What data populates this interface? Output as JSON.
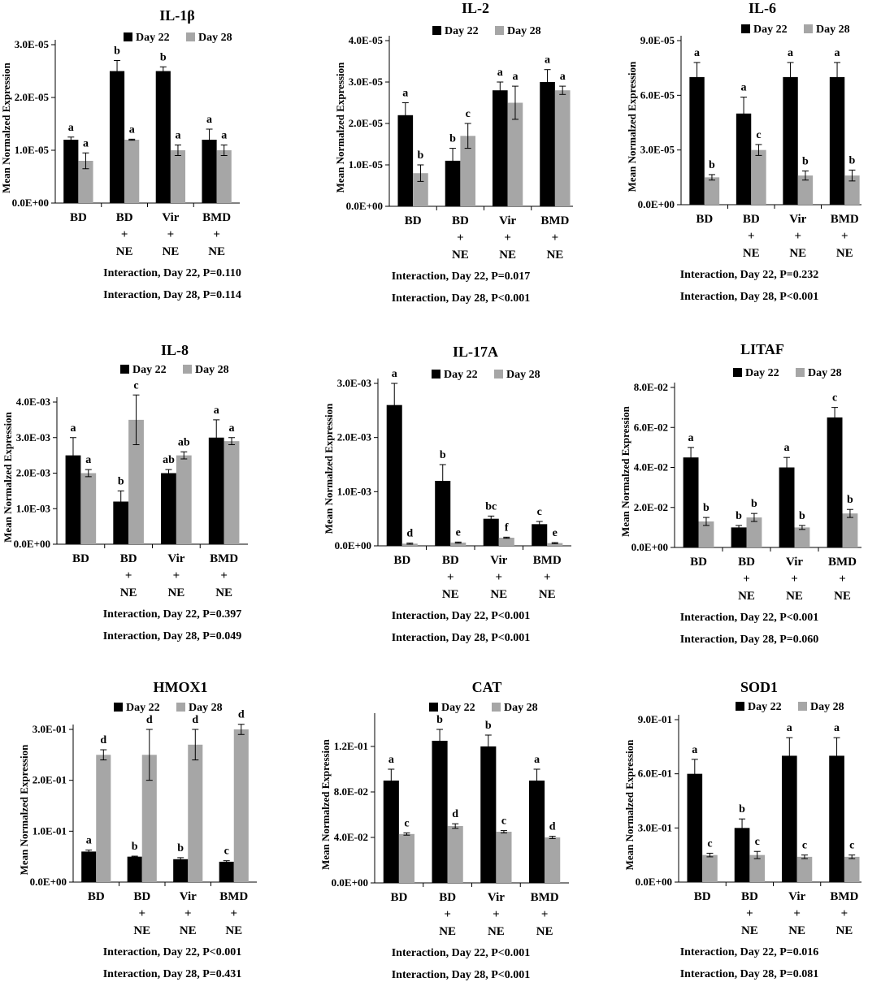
{
  "figure": {
    "legend_labels": [
      "Day 22",
      "Day 28"
    ],
    "colors": {
      "day22": "#000000",
      "day28": "#a6a6a6",
      "axis": "#000000"
    },
    "ylabel": "Mean Normalzed Expression"
  },
  "chart_data": [
    {
      "type": "bar",
      "title": "IL-1β",
      "ylabel": "Mean Normalzed Expression",
      "ylim": [
        0,
        3e-05
      ],
      "yticks": [
        0,
        1e-05,
        2e-05,
        3e-05
      ],
      "ytick_labels": [
        "0.0E+00",
        "1.0E-05",
        "2.0E-05",
        "3.0E-05"
      ],
      "categories": [
        [
          "BD"
        ],
        [
          "BD",
          "+",
          "NE"
        ],
        [
          "Vir",
          "+",
          "NE"
        ],
        [
          "BMD",
          "+",
          "NE"
        ]
      ],
      "series": [
        {
          "name": "Day 22",
          "values": [
            1.2e-05,
            2.5e-05,
            2.5e-05,
            1.2e-05
          ],
          "errors": [
            5e-07,
            2e-06,
            8e-07,
            2e-06
          ],
          "letters": [
            "a",
            "b",
            "b",
            "a"
          ]
        },
        {
          "name": "Day 28",
          "values": [
            8e-06,
            1.2e-05,
            1e-05,
            1e-05
          ],
          "errors": [
            1.5e-06,
            1e-07,
            1e-06,
            1e-06
          ],
          "letters": [
            "a",
            "a",
            "a",
            "a"
          ]
        }
      ],
      "annotations": [
        "Interaction, Day 22, P=0.110",
        "Interaction, Day 28, P=0.114"
      ]
    },
    {
      "type": "bar",
      "title": "IL-2",
      "ylabel": "Mean Normalzed Expression",
      "ylim": [
        0,
        4e-05
      ],
      "yticks": [
        0,
        1e-05,
        2e-05,
        3e-05,
        4e-05
      ],
      "ytick_labels": [
        "0.0E+00",
        "1.0E-05",
        "2.0E-05",
        "3.0E-05",
        "4.0E-05"
      ],
      "categories": [
        [
          "BD"
        ],
        [
          "BD",
          "+",
          "NE"
        ],
        [
          "Vir",
          "+",
          "NE"
        ],
        [
          "BMD",
          "+",
          "NE"
        ]
      ],
      "series": [
        {
          "name": "Day 22",
          "values": [
            2.2e-05,
            1.1e-05,
            2.8e-05,
            3e-05
          ],
          "errors": [
            3e-06,
            3e-06,
            2e-06,
            3e-06
          ],
          "letters": [
            "a",
            "b",
            "a",
            "a"
          ]
        },
        {
          "name": "Day 28",
          "values": [
            8e-06,
            1.7e-05,
            2.5e-05,
            2.8e-05
          ],
          "errors": [
            2e-06,
            3e-06,
            4e-06,
            1e-06
          ],
          "letters": [
            "b",
            "c",
            "a",
            "a"
          ]
        }
      ],
      "annotations": [
        "Interaction, Day 22, P=0.017",
        "Interaction, Day 28, P<0.001"
      ]
    },
    {
      "type": "bar",
      "title": "IL-6",
      "ylabel": "Mean Normalzed Expression",
      "ylim": [
        0,
        9e-05
      ],
      "yticks": [
        0,
        3e-05,
        6e-05,
        9e-05
      ],
      "ytick_labels": [
        "0.0E+00",
        "3.0E-05",
        "6.0E-05",
        "9.0E-05"
      ],
      "categories": [
        [
          "BD"
        ],
        [
          "BD",
          "+",
          "NE"
        ],
        [
          "Vir",
          "+",
          "NE"
        ],
        [
          "BMD",
          "+",
          "NE"
        ]
      ],
      "series": [
        {
          "name": "Day 22",
          "values": [
            7e-05,
            5e-05,
            7e-05,
            7e-05
          ],
          "errors": [
            8e-06,
            9e-06,
            8e-06,
            8e-06
          ],
          "letters": [
            "a",
            "a",
            "a",
            "a"
          ]
        },
        {
          "name": "Day 28",
          "values": [
            1.5e-05,
            3e-05,
            1.6e-05,
            1.6e-05
          ],
          "errors": [
            1.5e-06,
            3e-06,
            2.5e-06,
            3e-06
          ],
          "letters": [
            "b",
            "c",
            "b",
            "b"
          ]
        }
      ],
      "annotations": [
        "Interaction, Day 22, P=0.232",
        "Interaction, Day 28, P<0.001"
      ]
    },
    {
      "type": "bar",
      "title": "IL-8",
      "ylabel": "Mean Normalzed Expression",
      "ylim": [
        0,
        0.004
      ],
      "yticks": [
        0,
        0.001,
        0.002,
        0.003,
        0.004
      ],
      "ytick_labels": [
        "0.0E+00",
        "1.0E-03",
        "2.0E-03",
        "3.0E-03",
        "4.0E-03"
      ],
      "categories": [
        [
          "BD"
        ],
        [
          "BD",
          "+",
          "NE"
        ],
        [
          "Vir",
          "+",
          "NE"
        ],
        [
          "BMD",
          "+",
          "NE"
        ]
      ],
      "series": [
        {
          "name": "Day 22",
          "values": [
            0.0025,
            0.0012,
            0.002,
            0.003
          ],
          "errors": [
            0.0005,
            0.0003,
            0.0001,
            0.0005
          ],
          "letters": [
            "a",
            "b",
            "ab",
            "a"
          ]
        },
        {
          "name": "Day 28",
          "values": [
            0.002,
            0.0035,
            0.0025,
            0.0029
          ],
          "errors": [
            0.0001,
            0.0007,
            0.0001,
            0.0001
          ],
          "letters": [
            "a",
            "c",
            "ab",
            "a"
          ]
        }
      ],
      "annotations": [
        "Interaction, Day 22, P=0.397",
        "Interaction, Day 28, P=0.049"
      ]
    },
    {
      "type": "bar",
      "title": "IL-17A",
      "ylabel": "Mean Normalzed Expression",
      "ylim": [
        0,
        0.003
      ],
      "yticks": [
        0,
        0.001,
        0.002,
        0.003
      ],
      "ytick_labels": [
        "0.0E+00",
        "1.0E-03",
        "2.0E-03",
        "3.0E-03"
      ],
      "categories": [
        [
          "BD"
        ],
        [
          "BD",
          "+",
          "NE"
        ],
        [
          "Vir",
          "+",
          "NE"
        ],
        [
          "BMD",
          "+",
          "NE"
        ]
      ],
      "series": [
        {
          "name": "Day 22",
          "values": [
            0.0026,
            0.0012,
            0.0005,
            0.0004
          ],
          "errors": [
            0.0004,
            0.0003,
            5e-05,
            5e-05
          ],
          "letters": [
            "a",
            "b",
            "bc",
            "c"
          ]
        },
        {
          "name": "Day 28",
          "values": [
            4e-05,
            6e-05,
            0.00015,
            5e-05
          ],
          "errors": [
            1e-05,
            1e-05,
            1e-05,
            1e-05
          ],
          "letters": [
            "d",
            "e",
            "f",
            "e"
          ]
        }
      ],
      "annotations": [
        "Interaction, Day 22, P<0.001",
        "Interaction, Day 28, P<0.001"
      ]
    },
    {
      "type": "bar",
      "title": "LITAF",
      "ylabel": "Mean Normalzed Expression",
      "ylim": [
        0,
        0.08
      ],
      "yticks": [
        0,
        0.02,
        0.04,
        0.06,
        0.08
      ],
      "ytick_labels": [
        "0.0E+00",
        "2.0E-02",
        "4.0E-02",
        "6.0E-02",
        "8.0E-02"
      ],
      "categories": [
        [
          "BD"
        ],
        [
          "BD",
          "+",
          "NE"
        ],
        [
          "Vir",
          "+",
          "NE"
        ],
        [
          "BMD",
          "+",
          "NE"
        ]
      ],
      "series": [
        {
          "name": "Day 22",
          "values": [
            0.045,
            0.01,
            0.04,
            0.065
          ],
          "errors": [
            0.005,
            0.001,
            0.005,
            0.005
          ],
          "letters": [
            "a",
            "b",
            "a",
            "c"
          ]
        },
        {
          "name": "Day 28",
          "values": [
            0.013,
            0.015,
            0.01,
            0.017
          ],
          "errors": [
            0.002,
            0.002,
            0.001,
            0.002
          ],
          "letters": [
            "b",
            "b",
            "b",
            "b"
          ]
        }
      ],
      "annotations": [
        "Interaction, Day 22, P<0.001",
        "Interaction, Day 28, P=0.060"
      ]
    },
    {
      "type": "bar",
      "title": "HMOX1",
      "ylabel": "Mean Normalzed Expression",
      "ylim": [
        0,
        0.3
      ],
      "yticks": [
        0,
        0.1,
        0.2,
        0.3
      ],
      "ytick_labels": [
        "0.0E+00",
        "1.0E-01",
        "2.0E-01",
        "3.0E-01"
      ],
      "categories": [
        [
          "BD"
        ],
        [
          "BD",
          "+",
          "NE"
        ],
        [
          "Vir",
          "+",
          "NE"
        ],
        [
          "BMD",
          "+",
          "NE"
        ]
      ],
      "series": [
        {
          "name": "Day 22",
          "values": [
            0.06,
            0.05,
            0.045,
            0.04
          ],
          "errors": [
            0.003,
            0.001,
            0.003,
            0.002
          ],
          "letters": [
            "a",
            "b",
            "b",
            "c"
          ]
        },
        {
          "name": "Day 28",
          "values": [
            0.25,
            0.25,
            0.27,
            0.3
          ],
          "errors": [
            0.01,
            0.05,
            0.03,
            0.01
          ],
          "letters": [
            "d",
            "d",
            "d",
            "d"
          ]
        }
      ],
      "annotations": [
        "Interaction, Day 22, P<0.001",
        "Interaction, Day 28, P=0.431"
      ]
    },
    {
      "type": "bar",
      "title": "CAT",
      "ylabel": "Mean Normalzed Expression",
      "ylim": [
        0,
        0.145
      ],
      "yticks": [
        0,
        0.04,
        0.08,
        0.12
      ],
      "ytick_labels": [
        "0.0E+00",
        "4.0E-02",
        "8.0E-02",
        "1.2E-01"
      ],
      "categories": [
        [
          "BD"
        ],
        [
          "BD",
          "+",
          "NE"
        ],
        [
          "Vir",
          "+",
          "NE"
        ],
        [
          "BMD",
          "+",
          "NE"
        ]
      ],
      "series": [
        {
          "name": "Day 22",
          "values": [
            0.09,
            0.125,
            0.12,
            0.09
          ],
          "errors": [
            0.01,
            0.01,
            0.01,
            0.01
          ],
          "letters": [
            "a",
            "b",
            "b",
            "a"
          ]
        },
        {
          "name": "Day 28",
          "values": [
            0.043,
            0.05,
            0.045,
            0.04
          ],
          "errors": [
            0.001,
            0.002,
            0.001,
            0.001
          ],
          "letters": [
            "c",
            "d",
            "c",
            "d"
          ]
        }
      ],
      "annotations": [
        "Interaction, Day 22, P<0.001",
        "Interaction, Day 28, P<0.001"
      ]
    },
    {
      "type": "bar",
      "title": "SOD1",
      "ylabel": "Mean Normalzed Expression",
      "ylim": [
        0,
        0.9
      ],
      "yticks": [
        0,
        0.3,
        0.6,
        0.9
      ],
      "ytick_labels": [
        "0.0E+00",
        "3.0E-01",
        "6.0E-01",
        "9.0E-01"
      ],
      "categories": [
        [
          "BD"
        ],
        [
          "BD",
          "+",
          "NE"
        ],
        [
          "Vir",
          "+",
          "NE"
        ],
        [
          "BMD",
          "+",
          "NE"
        ]
      ],
      "series": [
        {
          "name": "Day 22",
          "values": [
            0.6,
            0.3,
            0.7,
            0.7
          ],
          "errors": [
            0.08,
            0.05,
            0.1,
            0.1
          ],
          "letters": [
            "a",
            "b",
            "a",
            "a"
          ]
        },
        {
          "name": "Day 28",
          "values": [
            0.15,
            0.15,
            0.14,
            0.14
          ],
          "errors": [
            0.01,
            0.02,
            0.01,
            0.01
          ],
          "letters": [
            "c",
            "c",
            "c",
            "c"
          ]
        }
      ],
      "annotations": [
        "Interaction, Day 22, P=0.016",
        "Interaction, Day 28, P=0.081"
      ]
    }
  ]
}
